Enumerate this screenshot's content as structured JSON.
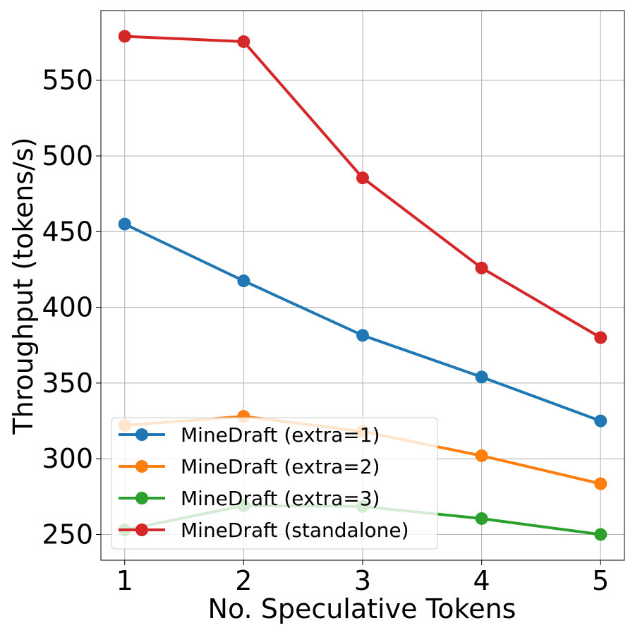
{
  "chart_data": {
    "type": "line",
    "title": "",
    "xlabel": "No. Speculative Tokens",
    "ylabel": "Throughput (tokens/s)",
    "x": [
      1,
      2,
      3,
      4,
      5
    ],
    "xticks": [
      "1",
      "2",
      "3",
      "4",
      "5"
    ],
    "yticks": [
      "250",
      "300",
      "350",
      "400",
      "450",
      "500",
      "550"
    ],
    "ylim": [
      233,
      596
    ],
    "xlim": [
      0.8,
      5.2
    ],
    "grid": true,
    "legend_position": "lower-left",
    "series": [
      {
        "name": "MineDraft (extra=1)",
        "color": "#1f77b4",
        "values": [
          455,
          417.5,
          381.5,
          354,
          325
        ]
      },
      {
        "name": "MineDraft (extra=2)",
        "color": "#ff7f0e",
        "values": [
          322,
          328,
          318,
          302,
          283.5
        ]
      },
      {
        "name": "MineDraft (extra=3)",
        "color": "#2ca02c",
        "values": [
          253,
          269,
          268.5,
          260.5,
          250
        ]
      },
      {
        "name": "MineDraft (standalone)",
        "color": "#d62728",
        "values": [
          579,
          575.5,
          485.5,
          426,
          380
        ]
      }
    ]
  }
}
